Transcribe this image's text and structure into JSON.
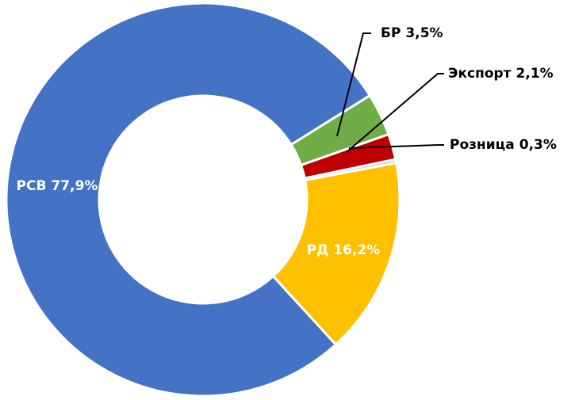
{
  "chart_data": {
    "type": "donut",
    "categories": [
      "БР",
      "Экспорт",
      "Розница",
      "РД",
      "РСВ"
    ],
    "values": [
      3.5,
      2.1,
      0.3,
      16.2,
      77.9
    ],
    "value_labels": [
      "3,5%",
      "2,1%",
      "0,3%",
      "16,2%",
      "77,9%"
    ],
    "colors": [
      "#70ad47",
      "#c00000",
      "#a9d4cf",
      "#ffc000",
      "#4472c4"
    ]
  }
}
